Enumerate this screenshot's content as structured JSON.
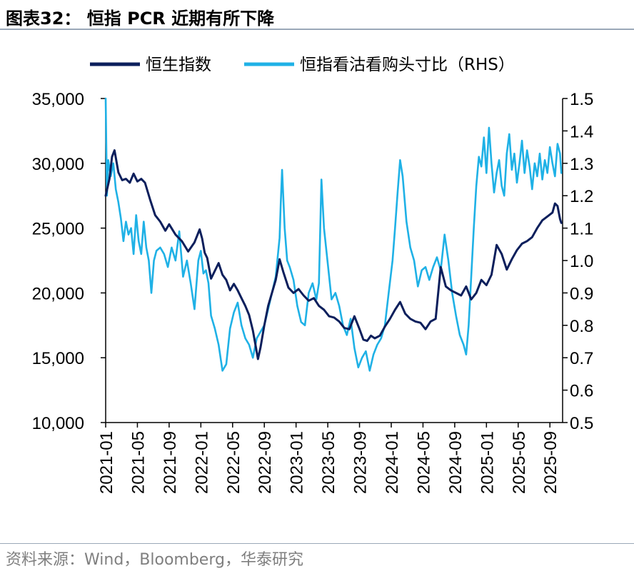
{
  "header": {
    "title": "图表32： 恒指 PCR 近期有所下降"
  },
  "footer": {
    "source": "资料来源：Wind，Bloomberg，华泰研究"
  },
  "chart_data": {
    "type": "line",
    "title": "恒指 PCR 近期有所下降",
    "x_labels": [
      "2021-01",
      "2021-05",
      "2021-09",
      "2022-01",
      "2022-05",
      "2022-09",
      "2023-01",
      "2023-05",
      "2023-09",
      "2024-01",
      "2024-05",
      "2024-09",
      "2025-01",
      "2025-05",
      "2025-09"
    ],
    "y_left": {
      "range": [
        10000,
        35000
      ],
      "ticks": [
        10000,
        15000,
        20000,
        25000,
        30000,
        35000
      ],
      "tick_labels": [
        "10,000",
        "15,000",
        "20,000",
        "25,000",
        "30,000",
        "35,000"
      ]
    },
    "y_right": {
      "range": [
        0.5,
        1.5
      ],
      "ticks": [
        0.5,
        0.6,
        0.7,
        0.8,
        0.9,
        1.0,
        1.1,
        1.2,
        1.3,
        1.4,
        1.5
      ],
      "tick_labels": [
        "0.5",
        "0.6",
        "0.7",
        "0.8",
        "0.9",
        "1.0",
        "1.1",
        "1.2",
        "1.3",
        "1.4",
        "1.5"
      ]
    },
    "series": [
      {
        "name": "恒生指数",
        "axis": "left",
        "color": "#0c1f5c",
        "points": [
          [
            0.0,
            27500
          ],
          [
            0.3,
            28800
          ],
          [
            0.5,
            30500
          ],
          [
            0.7,
            31000
          ],
          [
            1.0,
            29300
          ],
          [
            1.3,
            28700
          ],
          [
            1.6,
            28800
          ],
          [
            1.9,
            28500
          ],
          [
            2.2,
            29200
          ],
          [
            2.5,
            28600
          ],
          [
            2.8,
            28800
          ],
          [
            3.1,
            28500
          ],
          [
            3.5,
            27200
          ],
          [
            3.9,
            26000
          ],
          [
            4.3,
            25500
          ],
          [
            4.7,
            24800
          ],
          [
            5.0,
            25300
          ],
          [
            5.5,
            24500
          ],
          [
            6.0,
            24000
          ],
          [
            6.5,
            23200
          ],
          [
            7.0,
            23900
          ],
          [
            7.4,
            24900
          ],
          [
            7.6,
            24200
          ],
          [
            7.8,
            23100
          ],
          [
            8.0,
            22700
          ],
          [
            8.3,
            21100
          ],
          [
            8.6,
            21700
          ],
          [
            8.9,
            22300
          ],
          [
            9.2,
            21400
          ],
          [
            9.5,
            21000
          ],
          [
            9.8,
            20200
          ],
          [
            10.1,
            20700
          ],
          [
            10.4,
            20200
          ],
          [
            10.7,
            19600
          ],
          [
            11.0,
            19000
          ],
          [
            11.3,
            18300
          ],
          [
            11.6,
            17100
          ],
          [
            11.8,
            16000
          ],
          [
            12.0,
            14900
          ],
          [
            12.2,
            15800
          ],
          [
            12.5,
            17500
          ],
          [
            12.8,
            19000
          ],
          [
            13.1,
            20000
          ],
          [
            13.4,
            21000
          ],
          [
            13.7,
            22600
          ],
          [
            14.0,
            21600
          ],
          [
            14.4,
            20400
          ],
          [
            14.8,
            20000
          ],
          [
            15.2,
            20300
          ],
          [
            15.6,
            19800
          ],
          [
            16.0,
            19400
          ],
          [
            16.4,
            19600
          ],
          [
            16.8,
            19000
          ],
          [
            17.2,
            18700
          ],
          [
            17.6,
            18200
          ],
          [
            18.0,
            18100
          ],
          [
            18.4,
            17800
          ],
          [
            18.8,
            17300
          ],
          [
            19.2,
            17200
          ],
          [
            19.6,
            18200
          ],
          [
            20.0,
            17200
          ],
          [
            20.3,
            16400
          ],
          [
            20.6,
            16300
          ],
          [
            20.9,
            16700
          ],
          [
            21.2,
            16500
          ],
          [
            21.6,
            16700
          ],
          [
            22.0,
            17400
          ],
          [
            22.4,
            18000
          ],
          [
            22.8,
            18700
          ],
          [
            23.2,
            19300
          ],
          [
            23.6,
            18400
          ],
          [
            24.0,
            18000
          ],
          [
            24.4,
            17800
          ],
          [
            24.8,
            17700
          ],
          [
            25.2,
            17200
          ],
          [
            25.6,
            17800
          ],
          [
            26.0,
            18000
          ],
          [
            26.4,
            22000
          ],
          [
            26.8,
            20500
          ],
          [
            27.2,
            20200
          ],
          [
            27.6,
            20000
          ],
          [
            28.0,
            19800
          ],
          [
            28.4,
            20500
          ],
          [
            28.8,
            19500
          ],
          [
            29.2,
            20000
          ],
          [
            29.6,
            21000
          ],
          [
            30.0,
            20600
          ],
          [
            30.4,
            21400
          ],
          [
            30.8,
            23700
          ],
          [
            31.2,
            23000
          ],
          [
            31.6,
            21800
          ],
          [
            32.0,
            22600
          ],
          [
            32.4,
            23300
          ],
          [
            32.8,
            23800
          ],
          [
            33.2,
            24000
          ],
          [
            33.6,
            24300
          ],
          [
            34.0,
            25000
          ],
          [
            34.4,
            25600
          ],
          [
            34.8,
            25900
          ],
          [
            35.2,
            26200
          ],
          [
            35.4,
            26900
          ],
          [
            35.6,
            26700
          ],
          [
            35.8,
            25700
          ],
          [
            35.9,
            25400
          ]
        ]
      },
      {
        "name": "恒指看沽看购头寸比（RHS）",
        "axis": "right",
        "color": "#1fb1e6",
        "points": [
          [
            0.0,
            1.5
          ],
          [
            0.1,
            1.2
          ],
          [
            0.2,
            1.31
          ],
          [
            0.4,
            1.26
          ],
          [
            0.6,
            1.3
          ],
          [
            0.8,
            1.22
          ],
          [
            1.0,
            1.18
          ],
          [
            1.2,
            1.13
          ],
          [
            1.4,
            1.06
          ],
          [
            1.6,
            1.12
          ],
          [
            1.8,
            1.08
          ],
          [
            2.0,
            1.1
          ],
          [
            2.2,
            1.02
          ],
          [
            2.4,
            1.14
          ],
          [
            2.6,
            1.06
          ],
          [
            2.8,
            1.02
          ],
          [
            3.0,
            1.12
          ],
          [
            3.2,
            1.04
          ],
          [
            3.4,
            1.0
          ],
          [
            3.6,
            0.9
          ],
          [
            3.8,
            1.0
          ],
          [
            4.0,
            1.03
          ],
          [
            4.3,
            1.04
          ],
          [
            4.6,
            1.02
          ],
          [
            4.9,
            0.98
          ],
          [
            5.2,
            1.04
          ],
          [
            5.5,
            1.0
          ],
          [
            5.8,
            1.09
          ],
          [
            6.1,
            0.95
          ],
          [
            6.4,
            1.0
          ],
          [
            6.7,
            0.93
          ],
          [
            7.0,
            0.85
          ],
          [
            7.3,
            1.0
          ],
          [
            7.5,
            1.03
          ],
          [
            7.7,
            0.96
          ],
          [
            7.9,
            0.97
          ],
          [
            8.1,
            0.93
          ],
          [
            8.3,
            0.83
          ],
          [
            8.6,
            0.79
          ],
          [
            8.9,
            0.74
          ],
          [
            9.2,
            0.66
          ],
          [
            9.5,
            0.68
          ],
          [
            9.8,
            0.79
          ],
          [
            10.1,
            0.84
          ],
          [
            10.4,
            0.87
          ],
          [
            10.7,
            0.8
          ],
          [
            11.0,
            0.76
          ],
          [
            11.3,
            0.74
          ],
          [
            11.6,
            0.7
          ],
          [
            11.9,
            0.76
          ],
          [
            12.2,
            0.78
          ],
          [
            12.5,
            0.8
          ],
          [
            12.8,
            0.85
          ],
          [
            13.1,
            0.9
          ],
          [
            13.4,
            0.95
          ],
          [
            13.7,
            1.07
          ],
          [
            13.8,
            1.18
          ],
          [
            13.9,
            1.28
          ],
          [
            14.1,
            1.1
          ],
          [
            14.3,
            1.0
          ],
          [
            14.5,
            0.98
          ],
          [
            14.8,
            0.94
          ],
          [
            15.1,
            0.86
          ],
          [
            15.4,
            0.81
          ],
          [
            15.7,
            0.8
          ],
          [
            16.0,
            0.9
          ],
          [
            16.3,
            0.93
          ],
          [
            16.6,
            0.88
          ],
          [
            16.8,
            0.93
          ],
          [
            17.0,
            1.25
          ],
          [
            17.2,
            1.1
          ],
          [
            17.5,
            0.99
          ],
          [
            17.8,
            0.88
          ],
          [
            18.1,
            0.9
          ],
          [
            18.4,
            0.86
          ],
          [
            18.7,
            0.8
          ],
          [
            19.0,
            0.77
          ],
          [
            19.3,
            0.82
          ],
          [
            19.6,
            0.73
          ],
          [
            19.9,
            0.67
          ],
          [
            20.2,
            0.7
          ],
          [
            20.5,
            0.72
          ],
          [
            20.8,
            0.66
          ],
          [
            21.1,
            0.71
          ],
          [
            21.4,
            0.74
          ],
          [
            21.7,
            0.76
          ],
          [
            22.0,
            0.8
          ],
          [
            22.3,
            0.9
          ],
          [
            22.6,
            1.0
          ],
          [
            22.8,
            1.1
          ],
          [
            23.0,
            1.21
          ],
          [
            23.2,
            1.31
          ],
          [
            23.4,
            1.26
          ],
          [
            23.7,
            1.12
          ],
          [
            24.0,
            1.04
          ],
          [
            24.3,
            1.0
          ],
          [
            24.6,
            0.92
          ],
          [
            24.9,
            0.97
          ],
          [
            25.2,
            0.98
          ],
          [
            25.5,
            0.94
          ],
          [
            25.8,
            0.98
          ],
          [
            26.1,
            1.01
          ],
          [
            26.4,
            0.97
          ],
          [
            26.7,
            1.08
          ],
          [
            27.0,
            1.0
          ],
          [
            27.3,
            0.9
          ],
          [
            27.6,
            0.83
          ],
          [
            27.9,
            0.77
          ],
          [
            28.2,
            0.74
          ],
          [
            28.4,
            0.71
          ],
          [
            28.6,
            0.8
          ],
          [
            28.8,
            0.95
          ],
          [
            29.0,
            1.1
          ],
          [
            29.2,
            1.23
          ],
          [
            29.4,
            1.32
          ],
          [
            29.6,
            1.29
          ],
          [
            29.8,
            1.38
          ],
          [
            30.0,
            1.27
          ],
          [
            30.2,
            1.41
          ],
          [
            30.4,
            1.3
          ],
          [
            30.6,
            1.21
          ],
          [
            30.8,
            1.27
          ],
          [
            31.0,
            1.31
          ],
          [
            31.2,
            1.23
          ],
          [
            31.4,
            1.2
          ],
          [
            31.6,
            1.33
          ],
          [
            31.8,
            1.39
          ],
          [
            32.0,
            1.28
          ],
          [
            32.2,
            1.33
          ],
          [
            32.4,
            1.24
          ],
          [
            32.6,
            1.3
          ],
          [
            32.8,
            1.37
          ],
          [
            33.0,
            1.27
          ],
          [
            33.2,
            1.34
          ],
          [
            33.4,
            1.29
          ],
          [
            33.6,
            1.22
          ],
          [
            33.8,
            1.3
          ],
          [
            34.0,
            1.26
          ],
          [
            34.2,
            1.33
          ],
          [
            34.4,
            1.25
          ],
          [
            34.6,
            1.31
          ],
          [
            34.8,
            1.27
          ],
          [
            35.0,
            1.35
          ],
          [
            35.2,
            1.3
          ],
          [
            35.4,
            1.26
          ],
          [
            35.6,
            1.36
          ],
          [
            35.8,
            1.33
          ],
          [
            35.9,
            1.27
          ]
        ]
      }
    ],
    "x_range": [
      0,
      36
    ],
    "x_label_positions": [
      0,
      2.5,
      5,
      7.5,
      10,
      12.5,
      15,
      17.5,
      20,
      22.5,
      25,
      27.5,
      30,
      32.5,
      35
    ]
  }
}
